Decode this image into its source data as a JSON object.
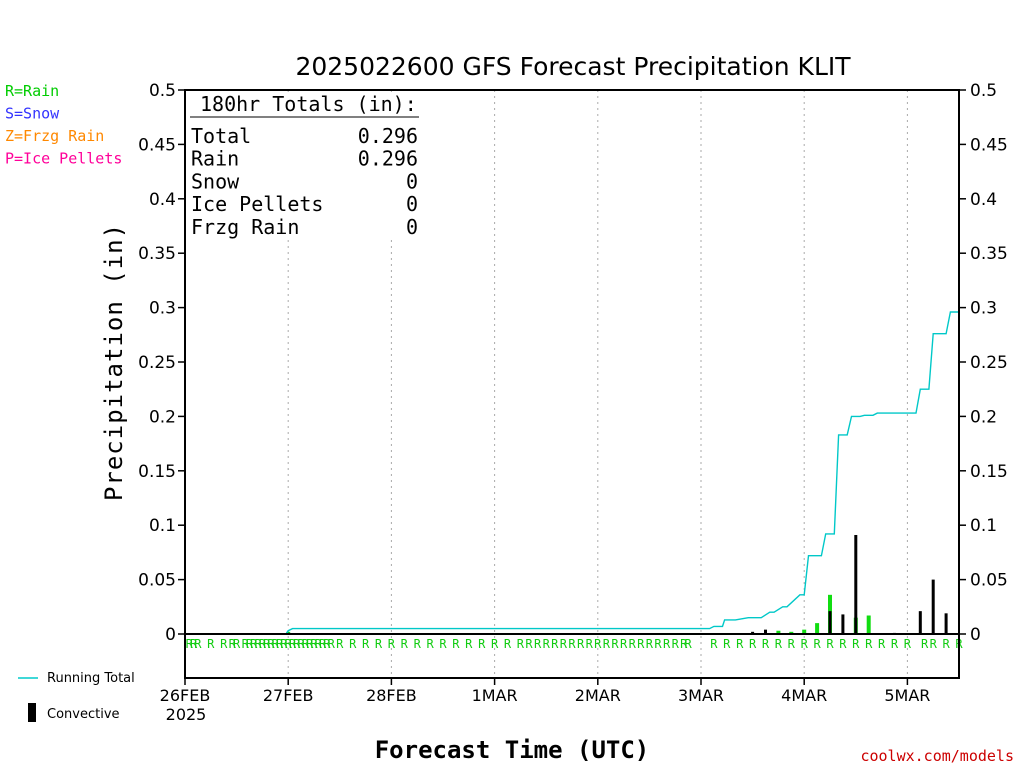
{
  "chart_data": {
    "type": "bar",
    "title": "2025022600 GFS Forecast Precipitation KLIT",
    "xlabel": "Forecast Time (UTC)",
    "ylabel": "Precipitation (in)",
    "ylim": [
      0,
      0.5
    ],
    "y_ticks": [
      "0",
      "0.05",
      "0.1",
      "0.15",
      "0.2",
      "0.25",
      "0.3",
      "0.35",
      "0.4",
      "0.45",
      "0.5"
    ],
    "x_range_hours": [
      0,
      180
    ],
    "x_ticks": [
      {
        "hour": 0,
        "label": "26FEB"
      },
      {
        "hour": 24,
        "label": "27FEB"
      },
      {
        "hour": 48,
        "label": "28FEB"
      },
      {
        "hour": 72,
        "label": "1MAR"
      },
      {
        "hour": 96,
        "label": "2MAR"
      },
      {
        "hour": 120,
        "label": "3MAR"
      },
      {
        "hour": 144,
        "label": "4MAR"
      },
      {
        "hour": 168,
        "label": "5MAR"
      }
    ],
    "x_year_label": "2025",
    "grid": "vertical dotted at each day",
    "legend": [
      {
        "code": "R=Rain",
        "color": "#00cc00"
      },
      {
        "code": "S=Snow",
        "color": "#3333ff"
      },
      {
        "code": "Z=Frzg Rain",
        "color": "#ff8800"
      },
      {
        "code": "P=Ice Pellets",
        "color": "#ff0099"
      }
    ],
    "bottom_legend": [
      {
        "label": "Running Total",
        "color": "#00cccc"
      },
      {
        "label": "Convective",
        "color": "#000000"
      }
    ],
    "totals_box": {
      "header": "180hr Totals (in):",
      "rows": [
        {
          "label": "Total",
          "value": "0.296"
        },
        {
          "label": "Rain",
          "value": "0.296"
        },
        {
          "label": "Snow",
          "value": "0"
        },
        {
          "label": "Ice Pellets",
          "value": "0"
        },
        {
          "label": "Frzg Rain",
          "value": "0"
        }
      ]
    },
    "series": [
      {
        "name": "Running Total",
        "x": [
          0,
          23.5,
          24,
          25,
          122,
          123,
          125,
          125.5,
          128,
          131,
          134,
          136,
          137,
          139,
          140,
          143,
          144,
          145,
          148,
          149,
          151,
          152,
          154,
          155,
          157,
          158,
          160,
          161,
          166,
          167,
          170,
          171,
          173,
          174,
          177,
          178,
          180
        ],
        "y": [
          0,
          0,
          0.003,
          0.005,
          0.005,
          0.007,
          0.007,
          0.013,
          0.013,
          0.015,
          0.015,
          0.02,
          0.02,
          0.025,
          0.025,
          0.036,
          0.036,
          0.072,
          0.072,
          0.092,
          0.092,
          0.183,
          0.183,
          0.2,
          0.2,
          0.201,
          0.201,
          0.203,
          0.203,
          0.203,
          0.203,
          0.225,
          0.225,
          0.276,
          0.276,
          0.296,
          0.296
        ]
      },
      {
        "name": "Rain",
        "bars": [
          {
            "hour": 24,
            "value": 0.002
          },
          {
            "hour": 138,
            "value": 0.003
          },
          {
            "hour": 141,
            "value": 0.002
          },
          {
            "hour": 144,
            "value": 0.004
          },
          {
            "hour": 147,
            "value": 0.01
          },
          {
            "hour": 150,
            "value": 0.036
          },
          {
            "hour": 156,
            "value": 0.015
          },
          {
            "hour": 159,
            "value": 0.017
          }
        ]
      },
      {
        "name": "Convective",
        "bars": [
          {
            "hour": 24,
            "value": 0.001
          },
          {
            "hour": 132,
            "value": 0.002
          },
          {
            "hour": 135,
            "value": 0.004
          },
          {
            "hour": 150,
            "value": 0.021
          },
          {
            "hour": 153,
            "value": 0.018
          },
          {
            "hour": 156,
            "value": 0.091
          },
          {
            "hour": 165,
            "value": 0.001
          },
          {
            "hour": 171,
            "value": 0.021
          },
          {
            "hour": 174,
            "value": 0.05
          },
          {
            "hour": 177,
            "value": 0.019
          }
        ]
      }
    ],
    "precip_type_markers": {
      "letter": "R",
      "hours": [
        1,
        2,
        3,
        6,
        9,
        11,
        12,
        14,
        15,
        16,
        17,
        18,
        19,
        20,
        21,
        22,
        23,
        24,
        25,
        26,
        27,
        28,
        29,
        30,
        31,
        32,
        33,
        34,
        36,
        39,
        42,
        45,
        48,
        51,
        54,
        57,
        60,
        63,
        66,
        69,
        72,
        75,
        78,
        80,
        82,
        84,
        86,
        88,
        90,
        92,
        94,
        96,
        98,
        100,
        102,
        104,
        106,
        108,
        110,
        112,
        114,
        116,
        117,
        123,
        126,
        129,
        132,
        135,
        138,
        141,
        144,
        147,
        150,
        153,
        156,
        159,
        162,
        165,
        168,
        172,
        174,
        177,
        180
      ]
    }
  },
  "watermark": "coolwx.com/models"
}
